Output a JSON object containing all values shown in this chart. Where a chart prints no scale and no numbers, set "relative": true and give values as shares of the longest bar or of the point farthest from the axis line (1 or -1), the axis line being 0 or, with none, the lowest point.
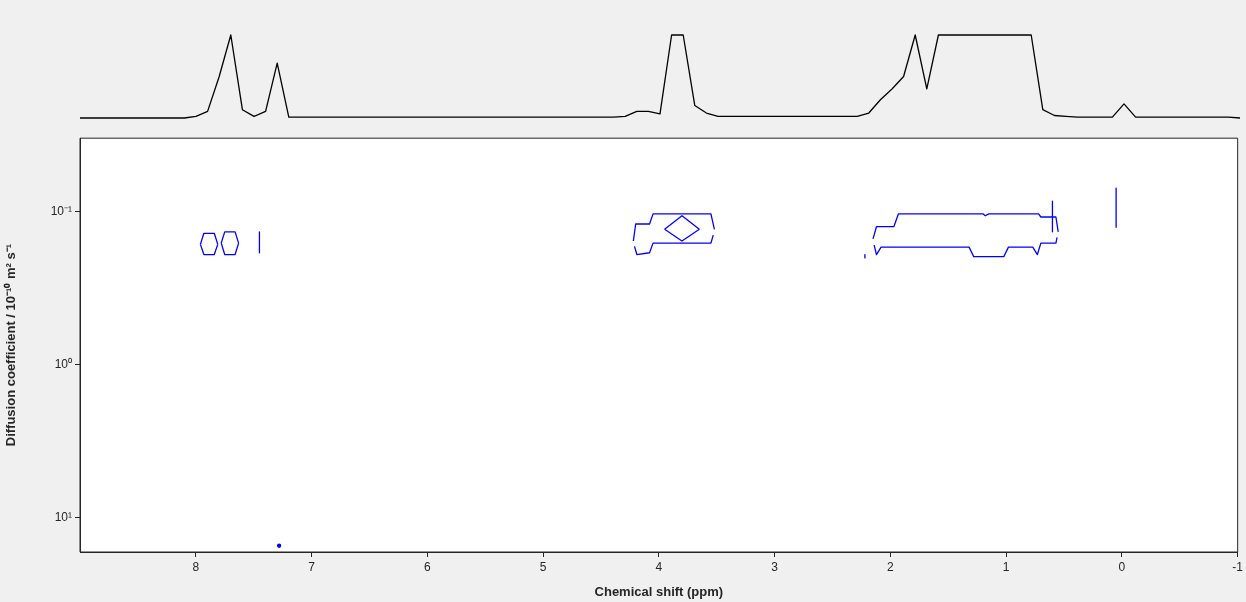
{
  "chart_data": [
    {
      "type": "line",
      "relative": true,
      "grid": false,
      "legend": false,
      "marker": "none",
      "line_style": "solid",
      "categories": [
        null,
        null,
        null,
        null,
        null,
        null,
        null,
        null,
        null,
        null,
        null,
        null,
        null,
        null,
        null,
        null,
        null,
        null,
        null,
        null,
        null,
        null,
        null,
        null,
        null,
        null,
        null,
        null,
        null,
        null,
        null,
        null,
        null,
        null,
        null,
        null,
        null,
        null,
        null,
        null,
        null,
        null,
        null,
        null,
        null,
        null,
        null,
        null,
        null,
        null,
        null,
        null,
        null,
        null,
        null,
        null,
        null,
        null,
        null,
        null,
        null,
        null,
        null,
        null,
        null,
        null,
        null,
        null,
        null,
        null,
        null,
        null,
        null,
        null,
        null,
        null,
        null,
        null,
        null,
        null,
        null,
        null,
        null,
        null,
        null,
        null,
        null,
        null,
        null,
        null,
        null,
        null,
        null,
        null,
        null,
        null,
        null,
        null,
        null,
        null,
        null
      ],
      "series": [
        {
          "color": "#000000",
          "values": [
            0,
            0,
            0,
            0,
            0,
            0,
            0,
            0,
            0,
            0,
            0.02,
            0.08,
            0.5,
            1,
            0.1,
            0.02,
            0.08,
            0.66,
            0.01,
            0.01,
            0.01,
            0.01,
            0.01,
            0.01,
            0.01,
            0.01,
            0.01,
            0.01,
            0.01,
            0.01,
            0.01,
            0.01,
            0.01,
            0.01,
            0.01,
            0.01,
            0.01,
            0.01,
            0.01,
            0.01,
            0.01,
            0.01,
            0.01,
            0.01,
            0.01,
            0.01,
            0.01,
            0.02,
            0.08,
            0.08,
            0.05,
            1,
            1,
            0.15,
            0.06,
            0.02,
            0.02,
            0.02,
            0.02,
            0.02,
            0.02,
            0.02,
            0.02,
            0.02,
            0.02,
            0.02,
            0.02,
            0.02,
            0.06,
            0.22,
            0.35,
            0.5,
            1,
            0.35,
            1,
            1,
            1,
            1,
            1,
            1,
            1,
            1,
            1,
            0.1,
            0.03,
            0.02,
            0.01,
            0.01,
            0.01,
            0.01,
            0.17,
            0.01,
            0.01,
            0.01,
            0.01,
            0.01,
            0.01,
            0.01,
            0.01,
            0.01,
            0
          ]
        }
      ]
    },
    {
      "type": "line",
      "xlabel": "Chemical shift (ppm)",
      "ylabel": "Diffusion coefficient / 10⁻¹⁰ m² s⁻¹",
      "xlim": [
        9,
        -1
      ],
      "xticks": [
        8,
        7,
        6,
        5,
        4,
        3,
        2,
        1,
        0,
        -1
      ],
      "ylim": [
        16.7,
        0.033
      ],
      "log": "y",
      "yticks": [
        {
          "value": 0.1,
          "label": "10⁻¹"
        },
        {
          "value": 1,
          "label": "10⁰"
        },
        {
          "value": 10,
          "label": "10¹"
        }
      ],
      "grid": false,
      "legend": false,
      "marker": "none",
      "line_style": "solid",
      "series": [
        {
          "color": "#0000ff",
          "x": [
            7.96,
            7.93,
            7.84,
            7.81
          ],
          "values": [
            0.163,
            0.138,
            0.138,
            0.163
          ]
        },
        {
          "color": "#0000ff",
          "x": [
            7.96,
            7.93,
            7.84,
            7.81
          ],
          "values": [
            0.163,
            0.19,
            0.19,
            0.163
          ]
        },
        {
          "color": "#0000ff",
          "x": [
            7.78,
            7.75,
            7.66,
            7.63
          ],
          "values": [
            0.16,
            0.135,
            0.135,
            0.16
          ]
        },
        {
          "color": "#0000ff",
          "x": [
            7.78,
            7.75,
            7.66,
            7.63
          ],
          "values": [
            0.16,
            0.19,
            0.19,
            0.16
          ]
        },
        {
          "color": "#0000ff",
          "x": [
            7.45,
            7.45
          ],
          "values": [
            0.135,
            0.185
          ]
        },
        {
          "color": "#0000ff",
          "x": [
            4.22,
            4.2,
            4.08,
            4.05,
            3.55,
            3.52
          ],
          "values": [
            0.155,
            0.12,
            0.12,
            0.103,
            0.103,
            0.13
          ]
        },
        {
          "color": "#0000ff",
          "x": [
            4.21,
            4.19,
            4.08,
            4.05,
            3.55,
            3.53
          ],
          "values": [
            0.168,
            0.19,
            0.185,
            0.16,
            0.16,
            0.142
          ]
        },
        {
          "color": "#0000ff",
          "x": [
            3.95,
            3.8,
            3.65
          ],
          "values": [
            0.13,
            0.106,
            0.13
          ]
        },
        {
          "color": "#0000ff",
          "x": [
            3.95,
            3.8,
            3.65
          ],
          "values": [
            0.13,
            0.155,
            0.13
          ]
        },
        {
          "color": "#0000ff",
          "x": [
            2.15,
            2.12,
            1.97,
            1.93,
            1.2,
            1.18,
            1.15,
            0.72,
            0.7,
            0.57,
            0.55
          ],
          "values": [
            0.15,
            0.125,
            0.125,
            0.103,
            0.103,
            0.106,
            0.103,
            0.103,
            0.108,
            0.108,
            0.135
          ]
        },
        {
          "color": "#0000ff",
          "x": [
            2.14,
            2.12,
            2.08,
            1.32,
            1.28,
            1.02,
            0.98,
            0.77,
            0.73,
            0.7,
            0.57,
            0.56
          ],
          "values": [
            0.165,
            0.19,
            0.17,
            0.17,
            0.196,
            0.196,
            0.17,
            0.17,
            0.19,
            0.16,
            0.16,
            0.147
          ]
        },
        {
          "color": "#0000ff",
          "x": [
            0.05,
            0.05
          ],
          "values": [
            0.07,
            0.126
          ]
        },
        {
          "color": "#0000ff",
          "x": [
            0.6,
            0.6
          ],
          "values": [
            0.085,
            0.135
          ]
        },
        {
          "color": "#0000ff",
          "x": [
            2.22,
            2.22
          ],
          "values": [
            0.19,
            0.2
          ]
        },
        {
          "type": "scatter",
          "marker": "circle",
          "color": "#0000ff",
          "x": [
            7.28
          ],
          "values": [
            15.2
          ]
        }
      ]
    }
  ]
}
